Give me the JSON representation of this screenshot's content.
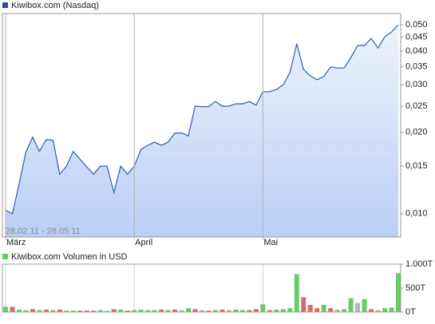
{
  "chart_data": [
    {
      "type": "area",
      "footnote": "28.02.11 - 28.05.11",
      "categories": [
        "März",
        null,
        null,
        null,
        null,
        null,
        null,
        null,
        null,
        null,
        null,
        null,
        null,
        null,
        null,
        null,
        null,
        null,
        null,
        "April",
        null,
        null,
        null,
        null,
        null,
        null,
        null,
        null,
        null,
        null,
        null,
        null,
        null,
        null,
        null,
        null,
        null,
        null,
        "Mai",
        null,
        null,
        null,
        null,
        null,
        null,
        null,
        null,
        null,
        null,
        null,
        null,
        null,
        null,
        null,
        null,
        null,
        null,
        null,
        null
      ],
      "series": [
        {
          "name": "Kiwibox.com (Nasdaq)",
          "color": "#2a5db0",
          "values": [
            0.0103,
            0.01,
            0.0129,
            0.0169,
            0.0192,
            0.017,
            0.0188,
            0.0187,
            0.014,
            0.015,
            0.017,
            0.0159,
            0.0149,
            0.014,
            0.015,
            0.015,
            0.012,
            0.015,
            0.014,
            0.015,
            0.0173,
            0.0179,
            0.0184,
            0.0179,
            0.0184,
            0.0199,
            0.0199,
            0.0194,
            0.025,
            0.0249,
            0.0249,
            0.026,
            0.025,
            0.025,
            0.0255,
            0.0255,
            0.026,
            0.0252,
            0.0283,
            0.0283,
            0.0288,
            0.03,
            0.0333,
            0.0425,
            0.0342,
            0.0324,
            0.0313,
            0.0322,
            0.0349,
            0.0346,
            0.0346,
            0.0378,
            0.0419,
            0.0419,
            0.0445,
            0.041,
            0.0451,
            0.047,
            0.05
          ]
        }
      ],
      "log_scale": true,
      "ylim": [
        0.0082,
        0.055
      ],
      "yticks": [
        {
          "value": 0.01,
          "label": "0,010"
        },
        {
          "value": 0.015,
          "label": "0,015"
        },
        {
          "value": 0.02,
          "label": "0,020"
        },
        {
          "value": 0.025,
          "label": "0,025"
        },
        {
          "value": 0.03,
          "label": "0,030"
        },
        {
          "value": 0.035,
          "label": "0,035"
        },
        {
          "value": 0.04,
          "label": "0,040"
        },
        {
          "value": 0.045,
          "label": "0,045"
        },
        {
          "value": 0.05,
          "label": "0,050"
        }
      ]
    },
    {
      "type": "bar",
      "series": [
        {
          "name": "Kiwibox.com Volumen in USD",
          "color": "#66cc66",
          "values": [
            110,
            110,
            50,
            40,
            60,
            40,
            50,
            40,
            50,
            30,
            30,
            30,
            30,
            30,
            40,
            30,
            60,
            50,
            30,
            40,
            50,
            40,
            40,
            50,
            40,
            50,
            40,
            80,
            60,
            40,
            30,
            40,
            50,
            40,
            50,
            40,
            40,
            60,
            160,
            40,
            50,
            60,
            80,
            790,
            310,
            150,
            80,
            150,
            80,
            50,
            60,
            290,
            190,
            270,
            60,
            40,
            80,
            90,
            810
          ],
          "colors": [
            "#66cc66",
            "#d96b6b",
            "#66cc66",
            "#66cc66",
            "#d96b6b",
            "#66cc66",
            "#d96b6b",
            "#66cc66",
            "#d96b6b",
            "#66cc66",
            "#66cc66",
            "#d96b6b",
            "#d96b6b",
            "#d96b6b",
            "#66cc66",
            "#b5b5b5",
            "#d96b6b",
            "#66cc66",
            "#d96b6b",
            "#66cc66",
            "#66cc66",
            "#66cc66",
            "#66cc66",
            "#d96b6b",
            "#66cc66",
            "#d96b6b",
            "#b5b5b5",
            "#66cc66",
            "#d96b6b",
            "#b5b5b5",
            "#d96b6b",
            "#66cc66",
            "#d96b6b",
            "#b5b5b5",
            "#66cc66",
            "#66cc66",
            "#d96b6b",
            "#d96b6b",
            "#66cc66",
            "#d96b6b",
            "#66cc66",
            "#66cc66",
            "#66cc66",
            "#66cc66",
            "#d96b6b",
            "#d96b6b",
            "#d96b6b",
            "#66cc66",
            "#d96b6b",
            "#b5b5b5",
            "#66cc66",
            "#66cc66",
            "#b5b5b5",
            "#66cc66",
            "#d96b6b",
            "#b5b5b5",
            "#66cc66",
            "#66cc66",
            "#66cc66"
          ]
        }
      ],
      "ylim": [
        0,
        1000
      ],
      "yticks": [
        {
          "value": 0,
          "label": "0T"
        },
        {
          "value": 500,
          "label": "500T"
        },
        {
          "value": 1000,
          "label": "1.000T"
        }
      ]
    }
  ]
}
